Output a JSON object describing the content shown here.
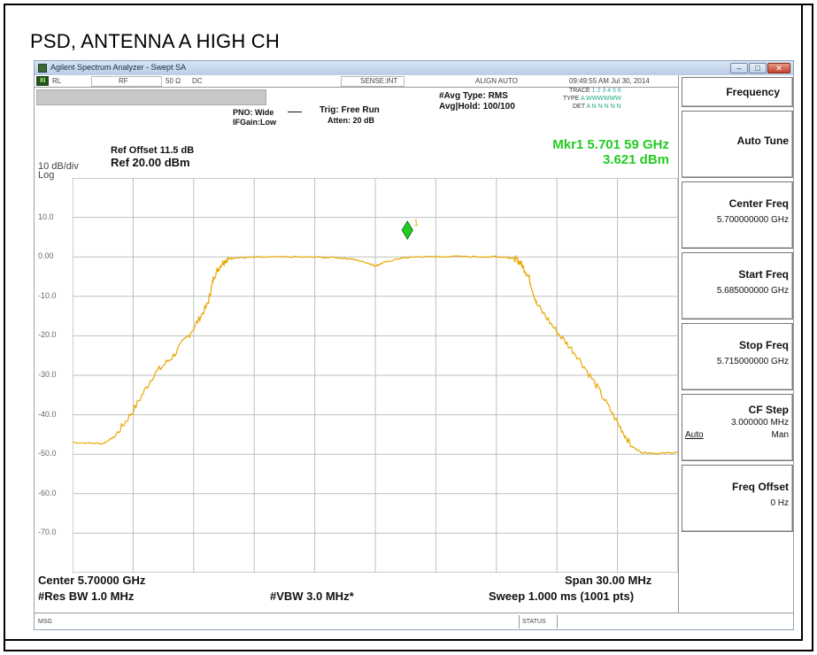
{
  "caption": "PSD, ANTENNA A HIGH CH",
  "window": {
    "title": "Agilent Spectrum Analyzer - Swept SA",
    "buttons": [
      "–",
      "□",
      "✕"
    ]
  },
  "status_row": {
    "xi": "XI",
    "rl": "RL",
    "rf": "RF",
    "impedance": "50 Ω",
    "coupling": "DC",
    "sense": "SENSE:INT",
    "align": "ALIGN AUTO",
    "timestamp": "09:49:55 AM Jul 30, 2014"
  },
  "settings": {
    "pno": "PNO: Wide",
    "ifgain": "IFGain:Low",
    "trig": "Trig: Free Run",
    "atten": "Atten: 20 dB",
    "avg_type": "#Avg Type: RMS",
    "avg_hold": "Avg|Hold: 100/100",
    "trace_label": "TRACE",
    "trace_nums": "1 2 3 4 5 6",
    "type_label": "TYPE",
    "type_vals": "A WWWWWW",
    "det_label": "DET",
    "det_vals": "A N N N N N"
  },
  "ref": {
    "offset": "Ref Offset 11.5 dB",
    "level": "Ref 20.00 dBm",
    "scale": "10 dB/div",
    "log": "Log"
  },
  "marker": {
    "freq": "Mkr1 5.701 59 GHz",
    "level": "3.621 dBm",
    "label": "1",
    "x_mhz": 1.59,
    "y_dbm": 3.621
  },
  "chart_data": {
    "type": "line",
    "title": "",
    "xlabel": "",
    "ylabel": "",
    "xlim": [
      -15,
      15
    ],
    "ylim": [
      -80,
      20
    ],
    "y_ticks": [
      "10.0",
      "0.00",
      "-10.0",
      "-20.0",
      "-30.0",
      "-40.0",
      "-50.0",
      "-60.0",
      "-70.0"
    ],
    "grid": true,
    "color": "#e8a800",
    "series": [
      {
        "x": [
          -15,
          -13.5,
          -12.9,
          -12.0,
          -11.0,
          -10.0,
          -9.0,
          -8.3,
          -8.0,
          -7.6,
          -7.3,
          -7.0,
          -6.0,
          -4.0,
          -2.0,
          -1.2,
          -0.4,
          0.0,
          0.4,
          1.2,
          2.0,
          4.0,
          6.0,
          6.5,
          6.9,
          7.2,
          7.6,
          8.0,
          9.0,
          10.0,
          11.0,
          12.0,
          12.7,
          13.2,
          14.0,
          15.0
        ],
        "y": [
          -47.0,
          -47.3,
          -45.5,
          -39.0,
          -30.0,
          -25.0,
          -18.0,
          -12.0,
          -5.0,
          -1.5,
          -0.5,
          -0.3,
          -0.1,
          0.0,
          -0.2,
          -0.5,
          -1.5,
          -2.3,
          -1.5,
          -0.4,
          0.0,
          0.1,
          0.0,
          -0.1,
          -0.4,
          -1.5,
          -5.0,
          -12.0,
          -19.0,
          -25.0,
          -33.0,
          -42.0,
          -48.0,
          -49.5,
          -49.8,
          -49.5
        ]
      }
    ]
  },
  "bottom": {
    "center": "Center 5.70000 GHz",
    "span": "Span 30.00 MHz",
    "rbw": "#Res BW 1.0 MHz",
    "vbw": "#VBW 3.0 MHz*",
    "sweep": "Sweep  1.000 ms (1001 pts)"
  },
  "msgbar": {
    "msg": "MSG",
    "status": "STATUS"
  },
  "softkeys": {
    "header": "Frequency",
    "auto_tune": "Auto Tune",
    "center_freq": {
      "label": "Center Freq",
      "value": "5.700000000 GHz"
    },
    "start_freq": {
      "label": "Start Freq",
      "value": "5.685000000 GHz"
    },
    "stop_freq": {
      "label": "Stop Freq",
      "value": "5.715000000 GHz"
    },
    "cf_step": {
      "label": "CF Step",
      "value": "3.000000 MHz",
      "auto": "Auto",
      "man": "Man"
    },
    "freq_offset": {
      "label": "Freq Offset",
      "value": "0 Hz"
    }
  }
}
